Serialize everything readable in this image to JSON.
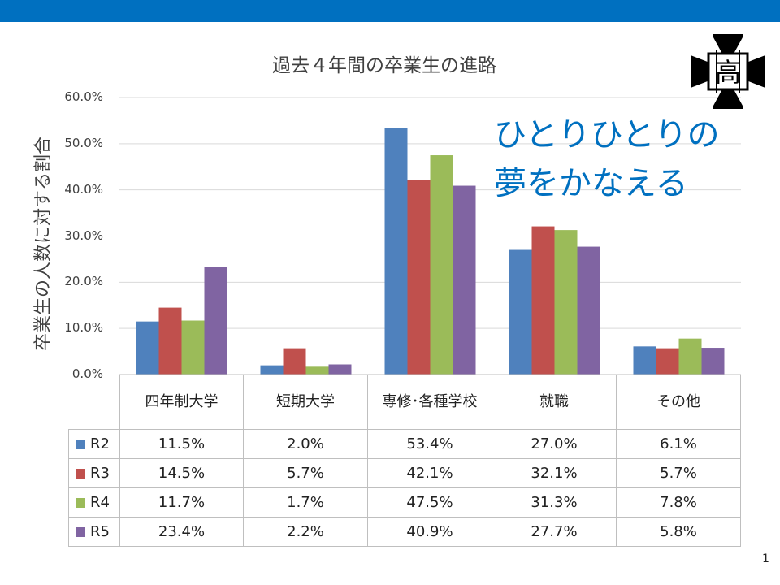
{
  "slogan": {
    "line1": "ひとりひとりの",
    "line2": "夢をかなえる"
  },
  "page_number": "1",
  "logo": {
    "name": "school-emblem",
    "text": "高"
  },
  "colors": {
    "top_bar": "#0070c0",
    "R2": "#4f81bd",
    "R3": "#c0504d",
    "R4": "#9bbb59",
    "R5": "#8064a2",
    "slogan": "#0070c0"
  },
  "chart_data": {
    "type": "bar",
    "title": "過去４年間の卒業生の進路",
    "ylabel": "卒業生の人数に対する割合",
    "xlabel": "",
    "ylim": [
      0,
      60
    ],
    "yticks": [
      "0.0%",
      "10.0%",
      "20.0%",
      "30.0%",
      "40.0%",
      "50.0%",
      "60.0%"
    ],
    "grid": true,
    "legend": "data-table",
    "categories": [
      "四年制大学",
      "短期大学",
      "専修･各種学校",
      "就職",
      "その他"
    ],
    "series": [
      {
        "name": "R2",
        "values": [
          11.5,
          2.0,
          53.4,
          27.0,
          6.1
        ],
        "labels": [
          "11.5%",
          "2.0%",
          "53.4%",
          "27.0%",
          "6.1%"
        ]
      },
      {
        "name": "R3",
        "values": [
          14.5,
          5.7,
          42.1,
          32.1,
          5.7
        ],
        "labels": [
          "14.5%",
          "5.7%",
          "42.1%",
          "32.1%",
          "5.7%"
        ]
      },
      {
        "name": "R4",
        "values": [
          11.7,
          1.7,
          47.5,
          31.3,
          7.8
        ],
        "labels": [
          "11.7%",
          "1.7%",
          "47.5%",
          "31.3%",
          "7.8%"
        ]
      },
      {
        "name": "R5",
        "values": [
          23.4,
          2.2,
          40.9,
          27.7,
          5.8
        ],
        "labels": [
          "23.4%",
          "2.2%",
          "40.9%",
          "27.7%",
          "5.8%"
        ]
      }
    ]
  }
}
